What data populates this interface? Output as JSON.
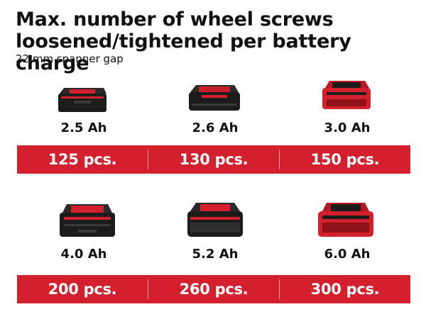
{
  "title": "Max. number of wheel screws loosened/tightened per battery charge",
  "subtitle": "22 mm spanner gap",
  "accent_color": "#d41f2c",
  "batteries": [
    {
      "capacity": "2.5 Ah",
      "count": "125 pcs.",
      "icon": "battery-2-5ah-icon"
    },
    {
      "capacity": "2.6 Ah",
      "count": "130 pcs.",
      "icon": "battery-2-6ah-icon"
    },
    {
      "capacity": "3.0 Ah",
      "count": "150 pcs.",
      "icon": "battery-3-0ah-icon"
    },
    {
      "capacity": "4.0 Ah",
      "count": "200 pcs.",
      "icon": "battery-4-0ah-icon"
    },
    {
      "capacity": "5.2 Ah",
      "count": "260 pcs.",
      "icon": "battery-5-2ah-icon"
    },
    {
      "capacity": "6.0 Ah",
      "count": "300 pcs.",
      "icon": "battery-6-0ah-icon"
    }
  ]
}
